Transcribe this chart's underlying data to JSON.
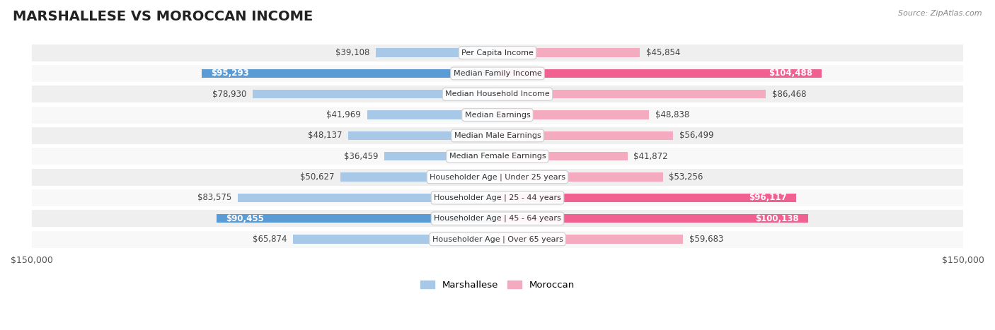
{
  "title": "MARSHALLESE VS MOROCCAN INCOME",
  "source": "Source: ZipAtlas.com",
  "categories": [
    "Per Capita Income",
    "Median Family Income",
    "Median Household Income",
    "Median Earnings",
    "Median Male Earnings",
    "Median Female Earnings",
    "Householder Age | Under 25 years",
    "Householder Age | 25 - 44 years",
    "Householder Age | 45 - 64 years",
    "Householder Age | Over 65 years"
  ],
  "marshallese": [
    39108,
    95293,
    78930,
    41969,
    48137,
    36459,
    50627,
    83575,
    90455,
    65874
  ],
  "moroccan": [
    45854,
    104488,
    86468,
    48838,
    56499,
    41872,
    53256,
    96117,
    100138,
    59683
  ],
  "marshallese_labels": [
    "$39,108",
    "$95,293",
    "$78,930",
    "$41,969",
    "$48,137",
    "$36,459",
    "$50,627",
    "$83,575",
    "$90,455",
    "$65,874"
  ],
  "moroccan_labels": [
    "$45,854",
    "$104,488",
    "$86,468",
    "$48,838",
    "$56,499",
    "$41,872",
    "$53,256",
    "$96,117",
    "$100,138",
    "$59,683"
  ],
  "marsh_dark": [
    false,
    true,
    false,
    false,
    false,
    false,
    false,
    false,
    true,
    false
  ],
  "moroc_dark": [
    false,
    true,
    false,
    false,
    false,
    false,
    false,
    true,
    true,
    false
  ],
  "max_value": 150000,
  "blue_light": "#A8C8E8",
  "blue_dark": "#5B9BD5",
  "pink_light": "#F4AABF",
  "pink_dark": "#F06090",
  "row_colors": [
    "#EFEFEF",
    "#F8F8F8",
    "#EFEFEF",
    "#F8F8F8",
    "#EFEFEF",
    "#F8F8F8",
    "#EFEFEF",
    "#F8F8F8",
    "#EFEFEF",
    "#F8F8F8"
  ],
  "bg_color": "#FFFFFF",
  "legend_blue": "Marshallese",
  "legend_pink": "Moroccan",
  "title_fontsize": 14,
  "label_fontsize": 8.5,
  "cat_fontsize": 8.0
}
